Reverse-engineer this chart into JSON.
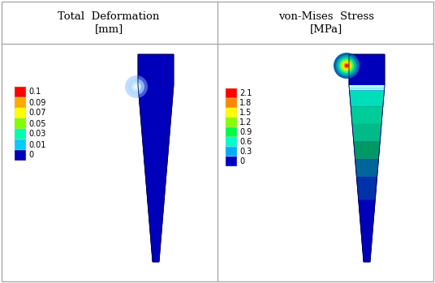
{
  "title_left": "Total  Deformation\n[mm]",
  "title_right": "von-Mises  Stress\n[MPa]",
  "deform_labels": [
    "0.1",
    "0.09",
    "0.07",
    "0.05",
    "0.03",
    "0.01",
    "0"
  ],
  "stress_labels": [
    "2.1",
    "1.8",
    "1.5",
    "1.2",
    "0.9",
    "0.6",
    "0.3",
    "0"
  ],
  "deform_colors": [
    "#ff0000",
    "#ffaa00",
    "#ffff00",
    "#80ff00",
    "#00ffaa",
    "#00ccff",
    "#0000bb"
  ],
  "stress_colors": [
    "#ff0000",
    "#ff8800",
    "#ffff00",
    "#88ff00",
    "#00ff44",
    "#00ffcc",
    "#00aaff",
    "#0000bb"
  ],
  "background": "#ffffff",
  "border_color": "#aaaaaa",
  "needle_blue": "#0000bb",
  "needle_dark": "#000088"
}
